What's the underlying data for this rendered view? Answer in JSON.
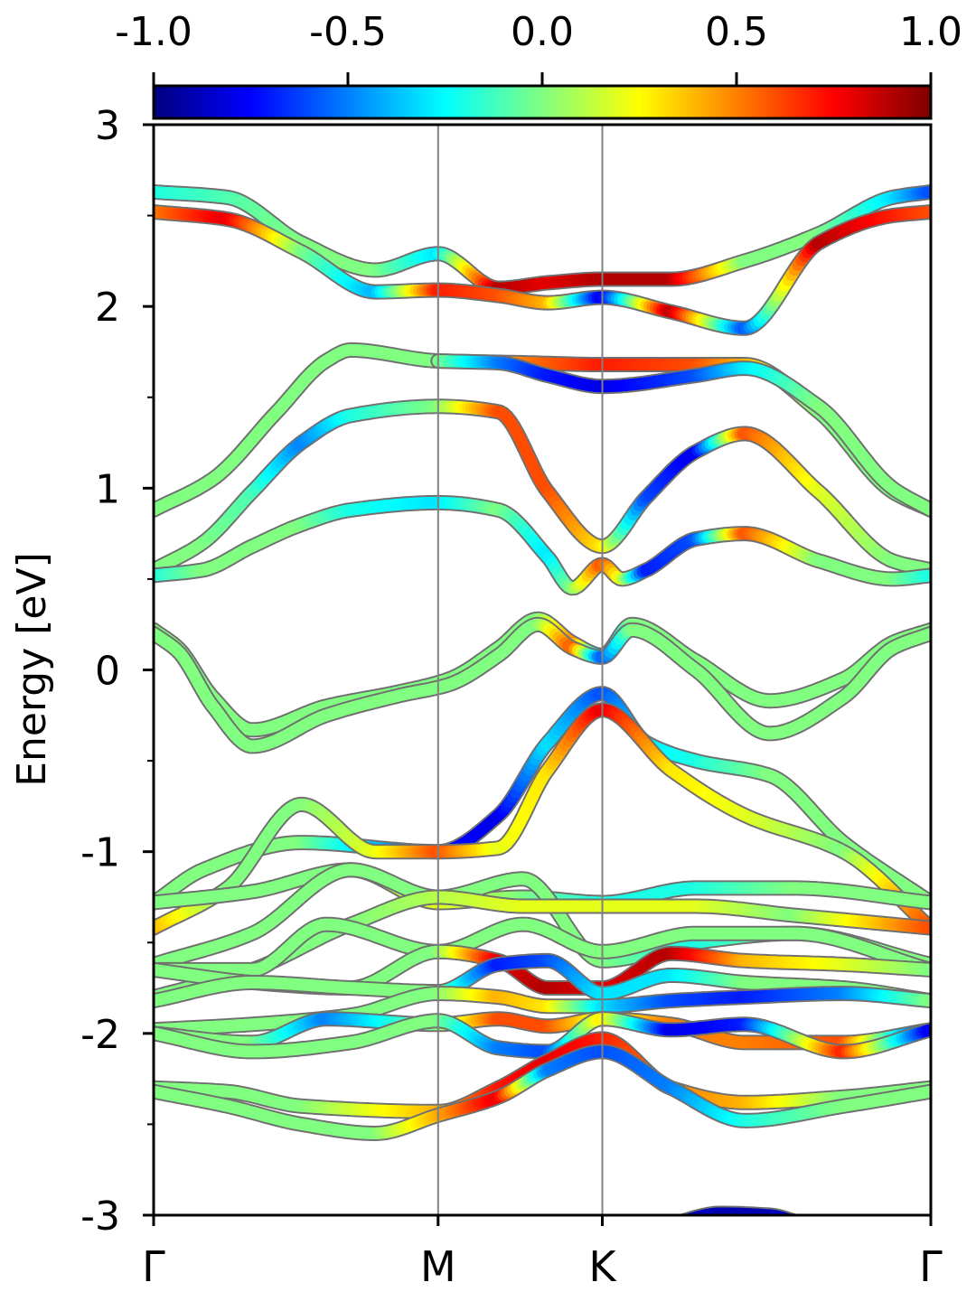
{
  "chart_data": {
    "type": "line",
    "title": "",
    "ylabel": "Energy [eV]",
    "xlabel": "",
    "ylim": [
      -3,
      3
    ],
    "y_ticks": [
      "3",
      "2",
      "1",
      "0",
      "-1",
      "-2",
      "-3"
    ],
    "k_path": [
      "Γ",
      "M",
      "K",
      "Γ"
    ],
    "k_positions": [
      0,
      0.5774,
      0.9107,
      1.5774
    ],
    "colorbar": {
      "colormap": "jet",
      "range": [
        -1.0,
        1.0
      ],
      "ticks": [
        "-1.0",
        "-0.5",
        "0.0",
        "0.5",
        "1.0"
      ]
    },
    "grid": false,
    "legend": "none",
    "series": [
      {
        "k": [
          0,
          0.15,
          0.3,
          0.45,
          0.5774,
          0.7,
          0.8,
          0.9107,
          1.05,
          1.2,
          1.35,
          1.5,
          1.5774
        ],
        "values": [
          2.63,
          2.6,
          2.35,
          2.2,
          2.29,
          2.1,
          2.13,
          2.15,
          2.15,
          2.25,
          2.4,
          2.6,
          2.63
        ],
        "color_value": [
          -0.2,
          -0.1,
          0,
          0,
          -0.3,
          0.9,
          0.8,
          0.9,
          0.9,
          0,
          0,
          -0.3,
          -0.6
        ]
      },
      {
        "k": [
          0,
          0.15,
          0.3,
          0.45,
          0.5774,
          0.7,
          0.8,
          0.9107,
          1.05,
          1.2,
          1.35,
          1.5,
          1.5774
        ],
        "values": [
          2.52,
          2.48,
          2.3,
          2.08,
          2.09,
          2.06,
          2.02,
          2.05,
          1.97,
          1.88,
          2.35,
          2.5,
          2.52
        ],
        "color_value": [
          0.5,
          0.8,
          0,
          -0.4,
          0.7,
          0.6,
          0.4,
          -0.8,
          0.9,
          -0.6,
          0.9,
          0.7,
          0.6
        ]
      },
      {
        "k": [
          0,
          0.12,
          0.25,
          0.35,
          0.4,
          0.5774,
          0.75,
          0.9107,
          1.1,
          1.2,
          1.35,
          1.5,
          1.5774
        ],
        "values": [
          0.88,
          1.05,
          1.42,
          1.7,
          1.76,
          1.7,
          1.69,
          1.68,
          1.68,
          1.68,
          1.42,
          0.98,
          0.88
        ],
        "color_value": [
          0,
          0,
          0,
          0,
          0,
          0,
          0.5,
          0.7,
          0.6,
          0.4,
          0,
          0,
          0
        ]
      },
      {
        "k": [
          0.5774,
          0.7,
          0.8,
          0.9107,
          1.1,
          1.2,
          1.35,
          1.5,
          1.5774
        ],
        "values": [
          1.7,
          1.69,
          1.62,
          1.56,
          1.62,
          1.66,
          1.45,
          1.0,
          0.88
        ],
        "color_value": [
          0,
          -0.5,
          -0.7,
          -0.8,
          -0.6,
          -0.3,
          0,
          0,
          0
        ]
      },
      {
        "k": [
          0,
          0.1,
          0.2,
          0.3,
          0.4,
          0.5774,
          0.7,
          0.8,
          0.9107,
          1.0,
          1.1,
          1.2,
          1.35,
          1.5,
          1.5774
        ],
        "values": [
          0.55,
          0.7,
          0.98,
          1.25,
          1.4,
          1.45,
          1.42,
          0.98,
          0.68,
          0.95,
          1.2,
          1.3,
          0.98,
          0.6,
          0.55
        ],
        "color_value": [
          0,
          0,
          -0.1,
          -0.5,
          -0.2,
          0,
          0.6,
          0.6,
          0.3,
          -0.6,
          -0.8,
          0.6,
          0.2,
          0,
          0
        ]
      },
      {
        "k": [
          0,
          0.1,
          0.2,
          0.3,
          0.4,
          0.5774,
          0.7,
          0.8,
          0.85,
          0.9107,
          0.95,
          1.0,
          1.1,
          1.2,
          1.35,
          1.5,
          1.5774
        ],
        "values": [
          0.52,
          0.55,
          0.68,
          0.8,
          0.88,
          0.92,
          0.88,
          0.62,
          0.45,
          0.58,
          0.5,
          0.55,
          0.72,
          0.75,
          0.6,
          0.5,
          0.52
        ],
        "color_value": [
          -0.2,
          0,
          0,
          0,
          -0.2,
          -0.3,
          0,
          -0.3,
          0,
          0.6,
          0.2,
          -0.7,
          -0.6,
          0.6,
          0,
          0,
          -0.2
        ]
      },
      {
        "k": [
          0,
          0.05,
          0.12,
          0.2,
          0.35,
          0.5,
          0.6,
          0.7,
          0.78,
          0.85,
          0.9107,
          0.97,
          1.1,
          1.25,
          1.4,
          1.5,
          1.5774
        ],
        "values": [
          0.22,
          0.12,
          -0.15,
          -0.33,
          -0.2,
          -0.12,
          -0.05,
          0.12,
          0.28,
          0.15,
          0.08,
          0.25,
          0.05,
          -0.17,
          -0.05,
          0.15,
          0.22
        ],
        "color_value": [
          0,
          0,
          0,
          0,
          0,
          0,
          0,
          0,
          0,
          0.5,
          -0.5,
          0,
          0,
          0,
          0,
          0,
          0
        ]
      },
      {
        "k": [
          0,
          0.05,
          0.12,
          0.2,
          0.35,
          0.5,
          0.6,
          0.7,
          0.78,
          0.85,
          0.9107,
          0.97,
          1.1,
          1.25,
          1.4,
          1.5,
          1.5774
        ],
        "values": [
          0.2,
          0.1,
          -0.2,
          -0.42,
          -0.25,
          -0.14,
          -0.08,
          0.08,
          0.25,
          0.12,
          0.07,
          0.22,
          0.0,
          -0.35,
          -0.15,
          0.12,
          0.2
        ],
        "color_value": [
          0,
          0,
          0,
          0,
          0,
          0,
          0,
          0,
          0,
          0.6,
          -0.6,
          0,
          0,
          0,
          0,
          0,
          0
        ]
      },
      {
        "k": [
          0,
          0.1,
          0.3,
          0.5774,
          0.7,
          0.8,
          0.9107,
          1.0,
          1.1,
          1.25,
          1.4,
          1.5774
        ],
        "values": [
          -1.28,
          -1.1,
          -0.95,
          -1.0,
          -0.8,
          -0.4,
          -0.13,
          -0.4,
          -0.5,
          -0.58,
          -0.95,
          -1.28
        ],
        "color_value": [
          0,
          0,
          0,
          -0.7,
          -0.8,
          -0.3,
          -0.6,
          -0.3,
          -0.2,
          0,
          0,
          0
        ]
      },
      {
        "k": [
          0,
          0.15,
          0.3,
          0.45,
          0.5774,
          0.7,
          0.8,
          0.9107,
          1.05,
          1.2,
          1.4,
          1.5774
        ],
        "values": [
          -1.42,
          -1.2,
          -0.74,
          -1.0,
          -1.0,
          -0.98,
          -0.55,
          -0.22,
          -0.55,
          -0.8,
          -1.0,
          -1.42
        ],
        "color_value": [
          0.4,
          0,
          0,
          0.2,
          0.6,
          0.2,
          0.3,
          0.8,
          0.3,
          0.2,
          0,
          0.6
        ]
      },
      {
        "k": [
          0,
          0.2,
          0.4,
          0.5774,
          0.75,
          0.9107,
          1.1,
          1.3,
          1.5774
        ],
        "values": [
          -1.28,
          -1.22,
          -1.1,
          -1.28,
          -1.25,
          -1.28,
          -1.2,
          -1.2,
          -1.28
        ],
        "color_value": [
          0,
          0,
          0,
          0.2,
          0,
          -0.2,
          -0.2,
          0,
          0
        ]
      },
      {
        "k": [
          0,
          0.2,
          0.4,
          0.5774,
          0.75,
          0.9107,
          1.1,
          1.3,
          1.5774
        ],
        "values": [
          -1.62,
          -1.45,
          -1.1,
          -1.25,
          -1.15,
          -1.6,
          -1.5,
          -1.45,
          -1.62
        ],
        "color_value": [
          0,
          0,
          0,
          0,
          0,
          0,
          -0.2,
          0,
          0
        ]
      },
      {
        "k": [
          0,
          0.2,
          0.4,
          0.5774,
          0.75,
          0.9107,
          1.1,
          1.3,
          1.5774
        ],
        "values": [
          -1.8,
          -1.65,
          -1.4,
          -1.25,
          -1.3,
          -1.3,
          -1.3,
          -1.35,
          -1.42
        ],
        "color_value": [
          0,
          0,
          0,
          0.1,
          0.2,
          0.2,
          0.2,
          0,
          0.6
        ]
      },
      {
        "k": [
          0,
          0.2,
          0.35,
          0.5774,
          0.75,
          0.9107,
          1.1,
          1.3,
          1.5774
        ],
        "values": [
          -1.65,
          -1.65,
          -1.4,
          -1.55,
          -1.4,
          -1.55,
          -1.45,
          -1.45,
          -1.65
        ],
        "color_value": [
          0,
          0,
          0,
          0,
          0,
          0,
          0,
          0,
          0
        ]
      },
      {
        "k": [
          0,
          0.2,
          0.4,
          0.5774,
          0.7,
          0.8,
          0.9107,
          1.05,
          1.2,
          1.4,
          1.5774
        ],
        "values": [
          -1.65,
          -1.72,
          -1.75,
          -1.55,
          -1.6,
          -1.75,
          -1.75,
          -1.56,
          -1.6,
          -1.62,
          -1.65
        ],
        "color_value": [
          0,
          0,
          0,
          0,
          0.8,
          0.9,
          0.8,
          0.9,
          0.4,
          0.2,
          0
        ]
      },
      {
        "k": [
          0,
          0.2,
          0.4,
          0.5774,
          0.7,
          0.8,
          0.9107,
          1.05,
          1.2,
          1.4,
          1.5774
        ],
        "values": [
          -1.82,
          -1.72,
          -1.75,
          -1.77,
          -1.62,
          -1.6,
          -1.78,
          -1.68,
          -1.72,
          -1.75,
          -1.82
        ],
        "color_value": [
          0,
          0,
          0,
          0,
          -0.7,
          -0.6,
          -0.3,
          -0.3,
          0,
          0,
          0
        ]
      },
      {
        "k": [
          0,
          0.2,
          0.4,
          0.5774,
          0.7,
          0.8,
          0.9107,
          1.05,
          1.2,
          1.4,
          1.5774
        ],
        "values": [
          -1.98,
          -1.95,
          -1.9,
          -1.78,
          -1.8,
          -1.85,
          -1.85,
          -1.82,
          -1.8,
          -1.78,
          -1.82
        ],
        "color_value": [
          0,
          0,
          0,
          0,
          0.4,
          0.3,
          -0.3,
          -0.6,
          -0.7,
          -0.5,
          0
        ]
      },
      {
        "k": [
          0,
          0.2,
          0.35,
          0.5774,
          0.7,
          0.8,
          0.9107,
          1.05,
          1.2,
          1.4,
          1.5774
        ],
        "values": [
          -2.0,
          -2.05,
          -1.92,
          -1.95,
          -1.92,
          -1.96,
          -1.92,
          -1.95,
          -2.05,
          -2.05,
          -1.98
        ],
        "color_value": [
          0,
          0,
          -0.5,
          0,
          0.6,
          0.6,
          0.2,
          0.5,
          0.5,
          0.6,
          -0.8
        ]
      },
      {
        "k": [
          0,
          0.2,
          0.4,
          0.5774,
          0.7,
          0.8,
          0.9107,
          1.05,
          1.2,
          1.4,
          1.5774
        ],
        "values": [
          -2.0,
          -2.1,
          -2.05,
          -1.93,
          -2.08,
          -2.1,
          -1.92,
          -1.98,
          -1.95,
          -2.1,
          -1.98
        ],
        "color_value": [
          0,
          0,
          0,
          0,
          -0.5,
          -0.6,
          0.3,
          -0.8,
          -0.7,
          0.7,
          -0.8
        ]
      },
      {
        "k": [
          0,
          0.15,
          0.3,
          0.5774,
          0.7,
          0.8,
          0.9107,
          1.05,
          1.2,
          1.4,
          1.5774
        ],
        "values": [
          -2.3,
          -2.32,
          -2.4,
          -2.43,
          -2.3,
          -2.15,
          -2.03,
          -2.3,
          -2.38,
          -2.35,
          -2.3
        ],
        "color_value": [
          0,
          0,
          0,
          0.4,
          0.7,
          0.8,
          0.7,
          0.5,
          0.4,
          0,
          0
        ]
      },
      {
        "k": [
          0,
          0.15,
          0.3,
          0.45,
          0.5774,
          0.7,
          0.8,
          0.9107,
          1.05,
          1.2,
          1.4,
          1.5774
        ],
        "values": [
          -2.32,
          -2.4,
          -2.5,
          -2.55,
          -2.45,
          -2.35,
          -2.2,
          -2.1,
          -2.3,
          -2.48,
          -2.4,
          -2.32
        ],
        "color_value": [
          0,
          0,
          0,
          0,
          0.4,
          0.8,
          -0.5,
          -0.6,
          -0.5,
          -0.2,
          0,
          0
        ]
      },
      {
        "k": [
          1.05,
          1.15,
          1.25,
          1.32
        ],
        "values": [
          -3.05,
          -2.99,
          -3.0,
          -3.05
        ],
        "color_value": [
          -0.8,
          -0.9,
          -0.9,
          -0.8
        ]
      }
    ]
  }
}
